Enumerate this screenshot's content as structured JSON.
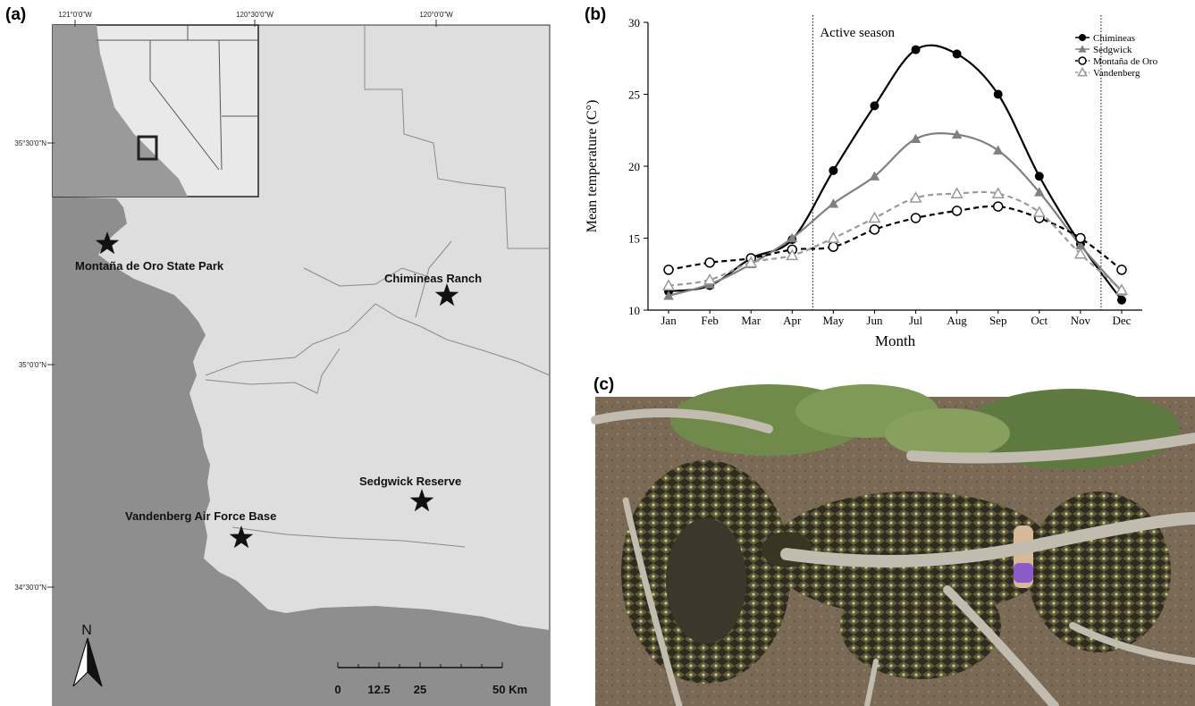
{
  "panels": {
    "a_label": "(a)",
    "b_label": "(b)",
    "c_label": "(c)"
  },
  "map": {
    "top_ticks": [
      "121°0'0\"W",
      "120°30'0\"W",
      "120°0'0\"W"
    ],
    "left_ticks": [
      "35°30'0\"N",
      "35°0'0\"N",
      "34°30'0\"N"
    ],
    "sites": [
      {
        "name": "Montaña de Oro State Park"
      },
      {
        "name": "Chimineas Ranch"
      },
      {
        "name": "Sedgwick Reserve"
      },
      {
        "name": "Vandenberg Air Force Base"
      }
    ],
    "north_label": "N",
    "scale_labels": [
      "0",
      "12.5",
      "25",
      "50 Km"
    ],
    "colors": {
      "ocean": "#8e8e8e",
      "land": "#dedede",
      "border": "#7a7a7a",
      "star": "#111111"
    }
  },
  "chart_data": {
    "type": "line",
    "categories": [
      "Jan",
      "Feb",
      "Mar",
      "Apr",
      "May",
      "Jun",
      "Jul",
      "Aug",
      "Sep",
      "Oct",
      "Nov",
      "Dec"
    ],
    "series": [
      {
        "name": "Chimineas",
        "values": [
          11.3,
          11.7,
          13.6,
          14.9,
          19.7,
          24.2,
          28.1,
          27.8,
          25.0,
          19.3,
          14.6,
          10.7
        ],
        "color": "#000000",
        "dash": "solid",
        "marker": "filled-circle"
      },
      {
        "name": "Sedgwick",
        "values": [
          11.0,
          11.8,
          13.2,
          15.0,
          17.4,
          19.3,
          21.9,
          22.2,
          21.1,
          18.2,
          14.5,
          11.3
        ],
        "color": "#808080",
        "dash": "solid",
        "marker": "filled-triangle"
      },
      {
        "name": "Montaña de Oro",
        "values": [
          12.8,
          13.3,
          13.6,
          14.2,
          14.4,
          15.6,
          16.4,
          16.9,
          17.2,
          16.4,
          15.0,
          12.8
        ],
        "color": "#000000",
        "dash": "dashed",
        "marker": "open-circle"
      },
      {
        "name": "Vandenberg",
        "values": [
          11.7,
          12.1,
          13.3,
          13.8,
          15.0,
          16.4,
          17.8,
          18.1,
          18.1,
          16.8,
          13.9,
          11.4
        ],
        "color": "#9a9a9a",
        "dash": "dashed",
        "marker": "open-triangle"
      }
    ],
    "xlabel": "Month",
    "ylabel": "Mean temperature (C°)",
    "ylim": [
      10,
      30
    ],
    "yticks": [
      10,
      15,
      20,
      25,
      30
    ],
    "annotation": "Active season",
    "active_season_bounds": [
      3.5,
      10.5
    ],
    "legend_position": "top-right",
    "grid": false
  },
  "photo": {
    "colors": {
      "soil": "#7a6a55",
      "wood": "#b9b2a6",
      "snake": "#2f2c1f",
      "snake_pattern": "#b8b878",
      "shrub": "#6f8a4a"
    }
  }
}
